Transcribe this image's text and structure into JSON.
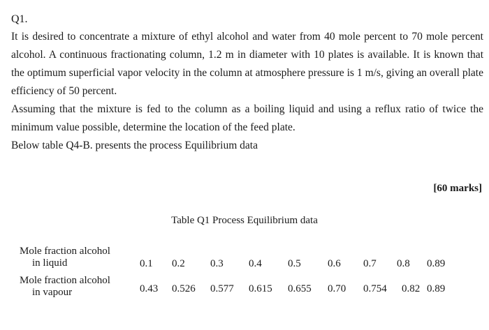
{
  "question": {
    "number": "Q1.",
    "paragraphs": [
      "It is desired to concentrate a mixture of ethyl alcohol and water from 40 mole percent to 70 mole percent alcohol. A continuous fractionating column, 1.2 m in diameter with 10 plates is available. It is known that the optimum superficial vapor velocity in the column at atmosphere pressure is 1 m/s, giving an overall plate efficiency of 50 percent.",
      "Assuming that the mixture is fed to the column as a boiling liquid and using a reflux ratio of twice the minimum value possible, determine the location of the feed plate.",
      "Below table Q4-B. presents the process Equilibrium data"
    ],
    "marks": "[60 marks]"
  },
  "table": {
    "caption": "Table Q1 Process Equilibrium data",
    "rows": [
      {
        "label_line1": "Mole fraction alcohol",
        "label_line2": "in liquid",
        "values": [
          "0.1",
          "0.2",
          "0.3",
          "0.4",
          "0.5",
          "0.6",
          "0.7",
          "0.8",
          "0.89"
        ]
      },
      {
        "label_line1": "Mole fraction alcohol",
        "label_line2": "in vapour",
        "values": [
          "0.43",
          "0.526",
          "0.577",
          "0.615",
          "0.655",
          "0.70",
          "0.754",
          "0.82",
          "0.89"
        ]
      }
    ]
  }
}
